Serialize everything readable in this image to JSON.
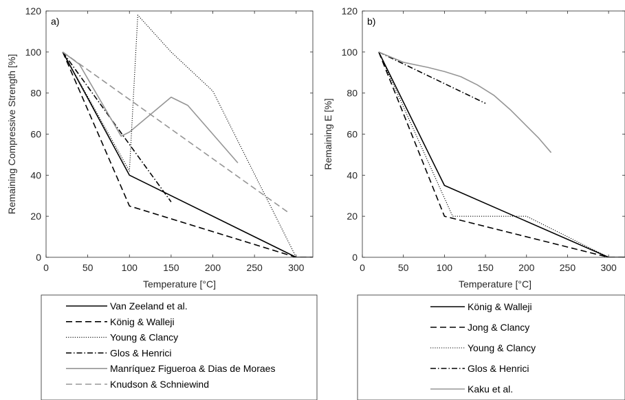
{
  "chart_data": [
    {
      "type": "line",
      "panel_label": "a)",
      "xlabel": "Temperature [°C]",
      "ylabel": "Remaining Compressive Strength [%]",
      "xlim": [
        0,
        320
      ],
      "ylim": [
        0,
        120
      ],
      "xticks": [
        0,
        50,
        100,
        150,
        200,
        250,
        300
      ],
      "yticks": [
        0,
        20,
        40,
        60,
        80,
        100,
        120
      ],
      "legend_position": "below",
      "series": [
        {
          "name": "Van Zeeland et al.",
          "style": "solid",
          "color": "#000000",
          "x": [
            20,
            100,
            300,
            320
          ],
          "y": [
            100,
            40,
            0,
            0
          ]
        },
        {
          "name": "König & Walleji",
          "style": "dashed",
          "color": "#000000",
          "x": [
            20,
            100,
            300,
            320
          ],
          "y": [
            100,
            25,
            0,
            0
          ]
        },
        {
          "name": "Young & Clancy",
          "style": "dotted",
          "color": "#000000",
          "x": [
            20,
            100,
            110,
            150,
            200,
            300,
            320
          ],
          "y": [
            100,
            42,
            118,
            100,
            81,
            0,
            0
          ]
        },
        {
          "name": "Glos & Henrici",
          "style": "dashdot",
          "color": "#000000",
          "x": [
            20,
            100,
            150
          ],
          "y": [
            100,
            55,
            27
          ]
        },
        {
          "name": "Manríquez Figueroa & Dias de Moraes",
          "style": "solid",
          "color": "#959595",
          "x": [
            20,
            40,
            90,
            100,
            150,
            170,
            230
          ],
          "y": [
            100,
            94,
            59,
            61,
            78,
            74,
            46
          ]
        },
        {
          "name": "Knudson & Schniewind",
          "style": "dashed",
          "color": "#959595",
          "x": [
            20,
            290
          ],
          "y": [
            100,
            22
          ]
        }
      ]
    },
    {
      "type": "line",
      "panel_label": "b)",
      "xlabel": "Temperature [°C]",
      "ylabel": "Remaining E [%]",
      "xlim": [
        0,
        320
      ],
      "ylim": [
        0,
        120
      ],
      "xticks": [
        0,
        50,
        100,
        150,
        200,
        250,
        300
      ],
      "yticks": [
        0,
        20,
        40,
        60,
        80,
        100,
        120
      ],
      "legend_position": "below",
      "series": [
        {
          "name": "König & Walleji",
          "style": "solid",
          "color": "#000000",
          "x": [
            20,
            100,
            300,
            320
          ],
          "y": [
            100,
            35,
            0,
            0
          ]
        },
        {
          "name": "Jong & Clancy",
          "style": "dashed",
          "color": "#000000",
          "x": [
            20,
            100,
            300,
            320
          ],
          "y": [
            100,
            20,
            0,
            0
          ]
        },
        {
          "name": "Young & Clancy",
          "style": "dotted",
          "color": "#000000",
          "x": [
            20,
            110,
            200,
            300,
            320
          ],
          "y": [
            100,
            20,
            20,
            0,
            0
          ]
        },
        {
          "name": "Glos & Henrici",
          "style": "dashdot",
          "color": "#000000",
          "x": [
            20,
            150
          ],
          "y": [
            100,
            75
          ]
        },
        {
          "name": "Kaku et al.",
          "style": "solid",
          "color": "#959595",
          "x": [
            20,
            50,
            80,
            100,
            120,
            140,
            160,
            180,
            200,
            215,
            230
          ],
          "y": [
            100,
            95,
            92.5,
            90.5,
            88,
            84,
            79,
            72,
            64,
            58,
            51
          ]
        }
      ]
    }
  ]
}
